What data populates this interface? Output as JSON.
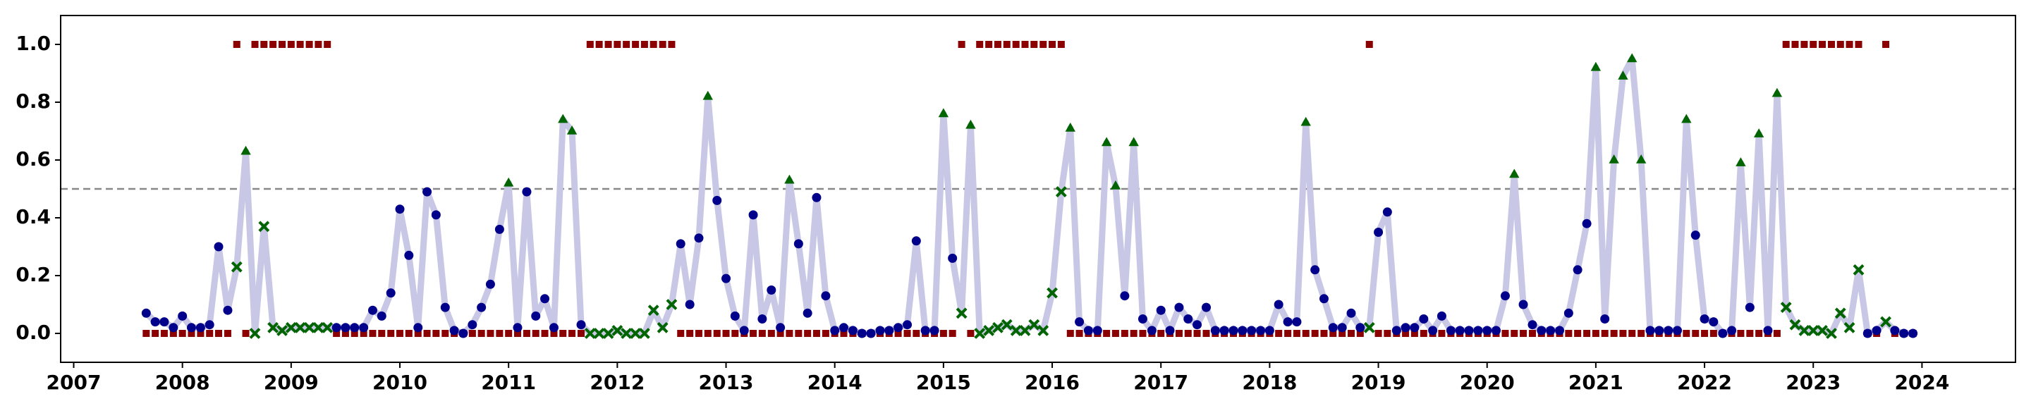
{
  "chart_data": {
    "type": "regime-scatter-line",
    "xlim": [
      2006.88,
      2024.86
    ],
    "ylim": [
      -0.1,
      1.1
    ],
    "xticks": [
      2007,
      2008,
      2009,
      2010,
      2011,
      2012,
      2013,
      2014,
      2015,
      2016,
      2017,
      2018,
      2019,
      2020,
      2021,
      2022,
      2023,
      2024
    ],
    "yticks": [
      {
        "value": 0,
        "label": "0.0"
      },
      {
        "value": 0.2,
        "label": "0.2"
      },
      {
        "value": 0.4,
        "label": "0.4"
      },
      {
        "value": 0.6,
        "label": "0.6"
      },
      {
        "value": 0.8,
        "label": "0.8"
      },
      {
        "value": 1.0,
        "label": "1.0"
      }
    ],
    "threshold": 0.5,
    "line_color": "#c8c8e6",
    "low_color": "#00008b",
    "high_color": "#006400",
    "regime_color": "#8b0000",
    "threshold_color": "#888888",
    "x": [
      2007.667,
      2007.75,
      2007.833,
      2007.917,
      2008,
      2008.083,
      2008.167,
      2008.25,
      2008.333,
      2008.417,
      2008.5,
      2008.583,
      2008.667,
      2008.75,
      2008.833,
      2008.917,
      2009,
      2009.083,
      2009.167,
      2009.25,
      2009.333,
      2009.417,
      2009.5,
      2009.583,
      2009.667,
      2009.75,
      2009.833,
      2009.917,
      2010,
      2010.083,
      2010.167,
      2010.25,
      2010.333,
      2010.417,
      2010.5,
      2010.583,
      2010.667,
      2010.75,
      2010.833,
      2010.917,
      2011,
      2011.083,
      2011.167,
      2011.25,
      2011.333,
      2011.417,
      2011.5,
      2011.583,
      2011.667,
      2011.75,
      2011.833,
      2011.917,
      2012,
      2012.083,
      2012.167,
      2012.25,
      2012.333,
      2012.417,
      2012.5,
      2012.583,
      2012.667,
      2012.75,
      2012.833,
      2012.917,
      2013,
      2013.083,
      2013.167,
      2013.25,
      2013.333,
      2013.417,
      2013.5,
      2013.583,
      2013.667,
      2013.75,
      2013.833,
      2013.917,
      2014,
      2014.083,
      2014.167,
      2014.25,
      2014.333,
      2014.417,
      2014.5,
      2014.583,
      2014.667,
      2014.75,
      2014.833,
      2014.917,
      2015,
      2015.083,
      2015.167,
      2015.25,
      2015.333,
      2015.417,
      2015.5,
      2015.583,
      2015.667,
      2015.75,
      2015.833,
      2015.917,
      2016,
      2016.083,
      2016.167,
      2016.25,
      2016.333,
      2016.417,
      2016.5,
      2016.583,
      2016.667,
      2016.75,
      2016.833,
      2016.917,
      2017,
      2017.083,
      2017.167,
      2017.25,
      2017.333,
      2017.417,
      2017.5,
      2017.583,
      2017.667,
      2017.75,
      2017.833,
      2017.917,
      2018,
      2018.083,
      2018.167,
      2018.25,
      2018.333,
      2018.417,
      2018.5,
      2018.583,
      2018.667,
      2018.75,
      2018.833,
      2018.917,
      2019,
      2019.083,
      2019.167,
      2019.25,
      2019.333,
      2019.417,
      2019.5,
      2019.583,
      2019.667,
      2019.75,
      2019.833,
      2019.917,
      2020,
      2020.083,
      2020.167,
      2020.25,
      2020.333,
      2020.417,
      2020.5,
      2020.583,
      2020.667,
      2020.75,
      2020.833,
      2020.917,
      2021,
      2021.083,
      2021.167,
      2021.25,
      2021.333,
      2021.417,
      2021.5,
      2021.583,
      2021.667,
      2021.75,
      2021.833,
      2021.917,
      2022,
      2022.083,
      2022.167,
      2022.25,
      2022.333,
      2022.417,
      2022.5,
      2022.583,
      2022.667,
      2022.75,
      2022.833,
      2022.917,
      2023,
      2023.083,
      2023.167,
      2023.25,
      2023.333,
      2023.417,
      2023.5,
      2023.583,
      2023.667,
      2023.75,
      2023.833,
      2023.917
    ],
    "values": [
      0.07,
      0.04,
      0.04,
      0.02,
      0.06,
      0.02,
      0.02,
      0.03,
      0.3,
      0.08,
      0.23,
      0.63,
      0.0,
      0.37,
      0.02,
      0.01,
      0.02,
      0.02,
      0.02,
      0.02,
      0.02,
      0.02,
      0.02,
      0.02,
      0.02,
      0.08,
      0.06,
      0.14,
      0.43,
      0.27,
      0.02,
      0.49,
      0.41,
      0.09,
      0.01,
      0.0,
      0.03,
      0.09,
      0.17,
      0.36,
      0.52,
      0.02,
      0.49,
      0.06,
      0.12,
      0.02,
      0.74,
      0.7,
      0.03,
      0.0,
      0.0,
      0.0,
      0.01,
      0.0,
      0.0,
      0.0,
      0.08,
      0.02,
      0.1,
      0.31,
      0.1,
      0.33,
      0.82,
      0.46,
      0.19,
      0.06,
      0.01,
      0.41,
      0.05,
      0.15,
      0.02,
      0.53,
      0.31,
      0.07,
      0.47,
      0.13,
      0.01,
      0.02,
      0.01,
      0.0,
      0.0,
      0.01,
      0.01,
      0.02,
      0.03,
      0.32,
      0.01,
      0.01,
      0.76,
      0.26,
      0.07,
      0.72,
      0.0,
      0.01,
      0.02,
      0.03,
      0.01,
      0.01,
      0.03,
      0.01,
      0.14,
      0.49,
      0.71,
      0.04,
      0.01,
      0.01,
      0.66,
      0.51,
      0.13,
      0.66,
      0.05,
      0.01,
      0.08,
      0.01,
      0.09,
      0.05,
      0.03,
      0.09,
      0.01,
      0.01,
      0.01,
      0.01,
      0.01,
      0.01,
      0.01,
      0.1,
      0.04,
      0.04,
      0.73,
      0.22,
      0.12,
      0.02,
      0.02,
      0.07,
      0.02,
      0.02,
      0.35,
      0.42,
      0.01,
      0.02,
      0.02,
      0.05,
      0.01,
      0.06,
      0.01,
      0.01,
      0.01,
      0.01,
      0.01,
      0.01,
      0.13,
      0.55,
      0.1,
      0.03,
      0.01,
      0.01,
      0.01,
      0.07,
      0.22,
      0.38,
      0.92,
      0.05,
      0.6,
      0.89,
      0.95,
      0.6,
      0.01,
      0.01,
      0.01,
      0.01,
      0.74,
      0.34,
      0.05,
      0.04,
      0.0,
      0.01,
      0.59,
      0.09,
      0.69,
      0.01,
      0.83,
      0.09,
      0.03,
      0.01,
      0.01,
      0.01,
      0.0,
      0.07,
      0.02,
      0.22,
      0.0,
      0.01,
      0.04,
      0.01,
      0.0,
      0.0
    ],
    "regime": [
      0,
      0,
      0,
      0,
      0,
      0,
      0,
      0,
      0,
      0,
      1,
      0,
      1,
      1,
      1,
      1,
      1,
      1,
      1,
      1,
      1,
      0,
      0,
      0,
      0,
      0,
      0,
      0,
      0,
      0,
      0,
      0,
      0,
      0,
      0,
      0,
      0,
      0,
      0,
      0,
      0,
      0,
      0,
      0,
      0,
      0,
      0,
      0,
      0,
      1,
      1,
      1,
      1,
      1,
      1,
      1,
      1,
      1,
      1,
      0,
      0,
      0,
      0,
      0,
      0,
      0,
      0,
      0,
      0,
      0,
      0,
      0,
      0,
      0,
      0,
      0,
      0,
      0,
      0,
      0,
      0,
      0,
      0,
      0,
      0,
      0,
      0,
      0,
      0,
      0,
      1,
      0,
      1,
      1,
      1,
      1,
      1,
      1,
      1,
      1,
      1,
      1,
      0,
      0,
      0,
      0,
      0,
      0,
      0,
      0,
      0,
      0,
      0,
      0,
      0,
      0,
      0,
      0,
      0,
      0,
      0,
      0,
      0,
      0,
      0,
      0,
      0,
      0,
      0,
      0,
      0,
      0,
      0,
      0,
      0,
      1,
      0,
      0,
      0,
      0,
      0,
      0,
      0,
      0,
      0,
      0,
      0,
      0,
      0,
      0,
      0,
      0,
      0,
      0,
      0,
      0,
      0,
      0,
      0,
      0,
      0,
      0,
      0,
      0,
      0,
      0,
      0,
      0,
      0,
      0,
      0,
      0,
      0,
      0,
      0,
      0,
      0,
      0,
      0,
      0,
      0,
      1,
      1,
      1,
      1,
      1,
      1,
      1,
      1,
      1,
      0,
      0,
      1,
      0,
      0,
      0
    ]
  }
}
